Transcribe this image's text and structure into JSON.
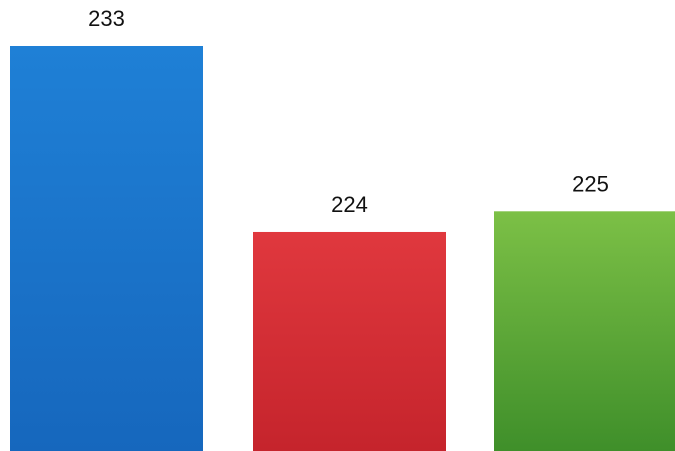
{
  "chart_data": {
    "type": "bar",
    "categories": [
      "",
      "",
      ""
    ],
    "values": [
      233,
      224,
      225
    ],
    "data_labels": [
      "233",
      "224",
      "225"
    ],
    "colors": [
      "#1a73c8",
      "#d62e35",
      "#4a9e2e"
    ],
    "title": "",
    "xlabel": "",
    "ylabel": "",
    "ylim": [
      213.4,
      233
    ],
    "grid": false,
    "legend": "none",
    "axes_visible": false
  }
}
